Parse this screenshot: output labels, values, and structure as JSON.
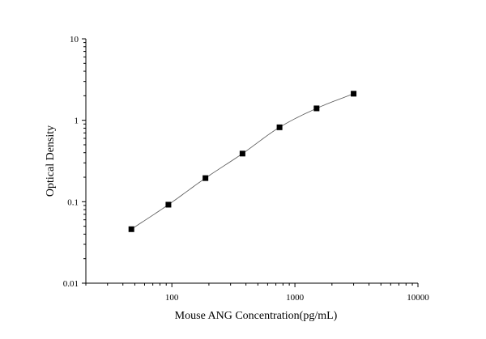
{
  "chart_data": {
    "type": "scatter",
    "title": "",
    "xlabel": "Mouse ANG Concentration(pg/mL)",
    "ylabel": "Optical Density",
    "x_scale": "log",
    "y_scale": "log",
    "xlim": [
      20,
      10000
    ],
    "ylim": [
      0.01,
      10
    ],
    "x_ticks": [
      100,
      1000,
      10000
    ],
    "x_tick_labels": [
      "100",
      "1000",
      "10000"
    ],
    "y_ticks": [
      0.01,
      0.1,
      1,
      10
    ],
    "y_tick_labels": [
      "0.01",
      "0.1",
      "1",
      "10"
    ],
    "grid": false,
    "legend": "none",
    "marker_color": "#000000",
    "line_color": "#555555",
    "series": [
      {
        "x": [
          46.875,
          93.75,
          187.5,
          375,
          750,
          1500,
          3000
        ],
        "y": [
          0.046,
          0.092,
          0.195,
          0.39,
          0.82,
          1.4,
          2.12
        ]
      }
    ]
  }
}
